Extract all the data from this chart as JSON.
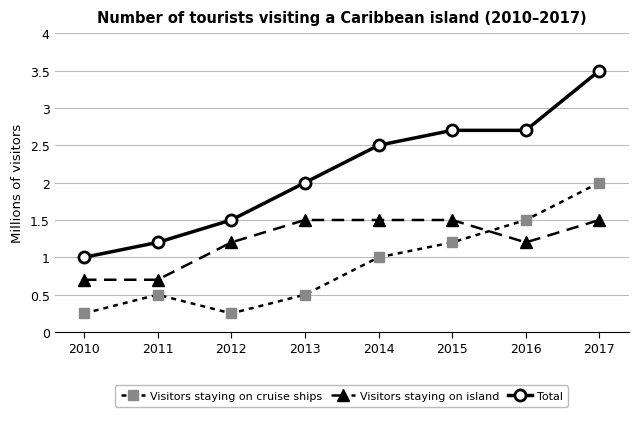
{
  "title": "Number of tourists visiting a Caribbean island (2010–2017)",
  "ylabel": "Millions of visitors",
  "years": [
    2010,
    2011,
    2012,
    2013,
    2014,
    2015,
    2016,
    2017
  ],
  "cruise_ships": [
    0.25,
    0.5,
    0.25,
    0.5,
    1.0,
    1.2,
    1.5,
    2.0
  ],
  "island": [
    0.7,
    0.7,
    1.2,
    1.5,
    1.5,
    1.5,
    1.2,
    1.5
  ],
  "total": [
    1.0,
    1.2,
    1.5,
    2.0,
    2.5,
    2.7,
    2.7,
    3.5
  ],
  "ylim": [
    0,
    4
  ],
  "yticks": [
    0,
    0.5,
    1.0,
    1.5,
    2.0,
    2.5,
    3.0,
    3.5,
    4.0
  ],
  "ytick_labels": [
    "0",
    "0.5",
    "1",
    "1.5",
    "2",
    "2.5",
    "3",
    "3.5",
    "4"
  ],
  "background_color": "#ffffff",
  "line_color": "#000000",
  "gray_color": "#888888",
  "legend_cruise": "Visitors staying on cruise ships",
  "legend_island": "Visitors staying on island",
  "legend_total": "Total"
}
